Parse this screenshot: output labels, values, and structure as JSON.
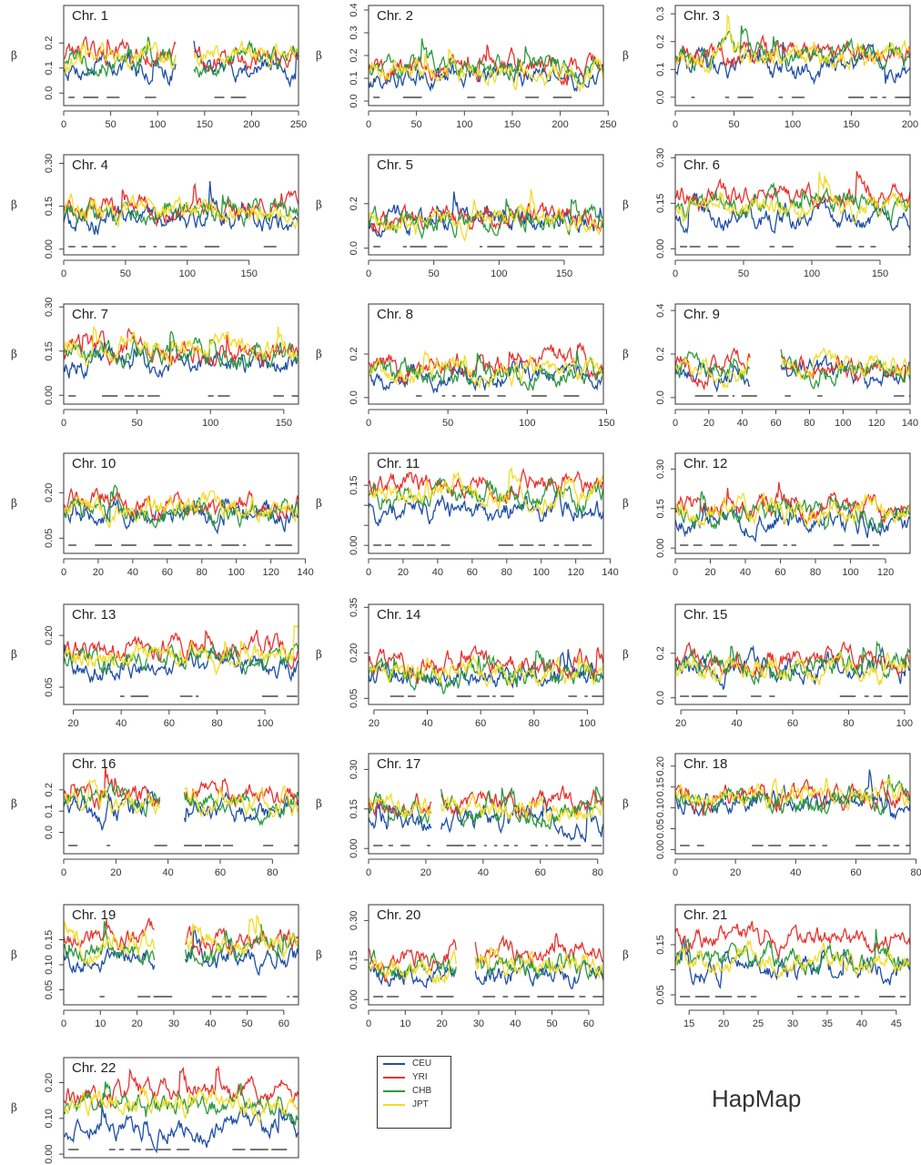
{
  "figure_label": "HapMap",
  "legend": {
    "items": [
      {
        "name": "CEU",
        "color": "#1f4ea3"
      },
      {
        "name": "YRI",
        "color": "#e8322e"
      },
      {
        "name": "CHB",
        "color": "#2e9a3e"
      },
      {
        "name": "JPT",
        "color": "#f2dc28"
      }
    ]
  },
  "chart_data": [
    {
      "type": "line",
      "title": "Chr. 1",
      "ylabel": "β",
      "xlim": [
        0,
        250
      ],
      "ylim": [
        -0.05,
        0.35
      ],
      "xticks": [
        0,
        50,
        100,
        150,
        200,
        250
      ],
      "yticks": [
        0.0,
        0.1,
        0.2
      ],
      "ytick_labels": [
        "0.0",
        "0.1",
        "0.2"
      ],
      "gaps": [
        [
          120,
          138
        ]
      ],
      "series": [
        {
          "name": "CEU",
          "mean": 0.1
        },
        {
          "name": "YRI",
          "mean": 0.15
        },
        {
          "name": "CHB",
          "mean": 0.14
        },
        {
          "name": "JPT",
          "mean": 0.14
        }
      ]
    },
    {
      "type": "line",
      "title": "Chr. 2",
      "ylabel": "β",
      "xlim": [
        0,
        245
      ],
      "ylim": [
        -0.02,
        0.42
      ],
      "xticks": [
        0,
        50,
        100,
        150,
        200,
        250
      ],
      "yticks": [
        0.0,
        0.1,
        0.2,
        0.3,
        0.4
      ],
      "ytick_labels": [
        "0.0",
        "0.1",
        "0.2",
        "0.3",
        "0.4"
      ],
      "gaps": [],
      "series": [
        {
          "name": "CEU",
          "mean": 0.1
        },
        {
          "name": "YRI",
          "mean": 0.14
        },
        {
          "name": "CHB",
          "mean": 0.14
        },
        {
          "name": "JPT",
          "mean": 0.13
        }
      ]
    },
    {
      "type": "line",
      "title": "Chr. 3",
      "ylabel": "β",
      "xlim": [
        0,
        200
      ],
      "ylim": [
        -0.03,
        0.33
      ],
      "xticks": [
        0,
        50,
        100,
        150,
        200
      ],
      "yticks": [
        0.0,
        0.1,
        0.2,
        0.3
      ],
      "ytick_labels": [
        "0.0",
        "0.1",
        "0.2",
        "0.3"
      ],
      "gaps": [],
      "series": [
        {
          "name": "CEU",
          "mean": 0.1
        },
        {
          "name": "YRI",
          "mean": 0.16
        },
        {
          "name": "CHB",
          "mean": 0.15
        },
        {
          "name": "JPT",
          "mean": 0.15
        }
      ]
    },
    {
      "type": "line",
      "title": "Chr. 4",
      "ylabel": "β",
      "xlim": [
        0,
        190
      ],
      "ylim": [
        -0.02,
        0.33
      ],
      "xticks": [
        0,
        50,
        100,
        150
      ],
      "yticks": [
        0.0,
        0.15,
        0.3
      ],
      "ytick_labels": [
        "0.00",
        "0.15",
        "0.30"
      ],
      "gaps": [],
      "series": [
        {
          "name": "CEU",
          "mean": 0.1
        },
        {
          "name": "YRI",
          "mean": 0.14
        },
        {
          "name": "CHB",
          "mean": 0.13
        },
        {
          "name": "JPT",
          "mean": 0.13
        }
      ]
    },
    {
      "type": "line",
      "title": "Chr. 5",
      "ylabel": "β",
      "xlim": [
        0,
        180
      ],
      "ylim": [
        -0.03,
        0.42
      ],
      "xticks": [
        0,
        50,
        100,
        150
      ],
      "yticks": [
        0.0,
        0.2
      ],
      "ytick_labels": [
        "0.0",
        "0.2"
      ],
      "gaps": [],
      "series": [
        {
          "name": "CEU",
          "mean": 0.11
        },
        {
          "name": "YRI",
          "mean": 0.14
        },
        {
          "name": "CHB",
          "mean": 0.13
        },
        {
          "name": "JPT",
          "mean": 0.13
        }
      ]
    },
    {
      "type": "line",
      "title": "Chr. 6",
      "ylabel": "β",
      "xlim": [
        0,
        172
      ],
      "ylim": [
        -0.02,
        0.31
      ],
      "xticks": [
        0,
        50,
        100,
        150
      ],
      "yticks": [
        0.0,
        0.15,
        0.3
      ],
      "ytick_labels": [
        "0.00",
        "0.15",
        "0.30"
      ],
      "gaps": [],
      "series": [
        {
          "name": "CEU",
          "mean": 0.1
        },
        {
          "name": "YRI",
          "mean": 0.17
        },
        {
          "name": "CHB",
          "mean": 0.14
        },
        {
          "name": "JPT",
          "mean": 0.14
        }
      ]
    },
    {
      "type": "line",
      "title": "Chr. 7",
      "ylabel": "β",
      "xlim": [
        0,
        160
      ],
      "ylim": [
        -0.03,
        0.31
      ],
      "xticks": [
        0,
        50,
        100,
        150
      ],
      "yticks": [
        0.0,
        0.15,
        0.3
      ],
      "ytick_labels": [
        "0.00",
        "0.15",
        "0.30"
      ],
      "gaps": [],
      "series": [
        {
          "name": "CEU",
          "mean": 0.1
        },
        {
          "name": "YRI",
          "mean": 0.15
        },
        {
          "name": "CHB",
          "mean": 0.14
        },
        {
          "name": "JPT",
          "mean": 0.15
        }
      ]
    },
    {
      "type": "line",
      "title": "Chr. 8",
      "ylabel": "β",
      "xlim": [
        0,
        148
      ],
      "ylim": [
        -0.03,
        0.43
      ],
      "xticks": [
        0,
        50,
        100,
        150
      ],
      "yticks": [
        0.0,
        0.2
      ],
      "ytick_labels": [
        "0.0",
        "0.2"
      ],
      "gaps": [],
      "series": [
        {
          "name": "CEU",
          "mean": 0.1
        },
        {
          "name": "YRI",
          "mean": 0.16
        },
        {
          "name": "CHB",
          "mean": 0.12
        },
        {
          "name": "JPT",
          "mean": 0.12
        }
      ]
    },
    {
      "type": "line",
      "title": "Chr. 9",
      "ylabel": "β",
      "xlim": [
        0,
        140
      ],
      "ylim": [
        -0.03,
        0.43
      ],
      "xticks": [
        0,
        20,
        40,
        60,
        80,
        100,
        120,
        140
      ],
      "yticks": [
        0.0,
        0.2,
        0.4
      ],
      "ytick_labels": [
        "0.0",
        "0.2",
        "0.4"
      ],
      "gaps": [
        [
          45,
          63
        ]
      ],
      "series": [
        {
          "name": "CEU",
          "mean": 0.1
        },
        {
          "name": "YRI",
          "mean": 0.14
        },
        {
          "name": "CHB",
          "mean": 0.13
        },
        {
          "name": "JPT",
          "mean": 0.13
        }
      ]
    },
    {
      "type": "line",
      "title": "Chr. 10",
      "ylabel": "β",
      "xlim": [
        0,
        136
      ],
      "ylim": [
        0.0,
        0.33
      ],
      "xticks": [
        0,
        20,
        40,
        60,
        80,
        100,
        120,
        140
      ],
      "yticks": [
        0.05,
        0.2
      ],
      "ytick_labels": [
        "0.05",
        "0.20"
      ],
      "gaps": [],
      "series": [
        {
          "name": "CEU",
          "mean": 0.13
        },
        {
          "name": "YRI",
          "mean": 0.16
        },
        {
          "name": "CHB",
          "mean": 0.14
        },
        {
          "name": "JPT",
          "mean": 0.15
        }
      ]
    },
    {
      "type": "line",
      "title": "Chr. 11",
      "ylabel": "β",
      "xlim": [
        0,
        136
      ],
      "ylim": [
        -0.02,
        0.23
      ],
      "xticks": [
        0,
        20,
        40,
        60,
        80,
        100,
        120,
        140
      ],
      "yticks": [
        0.0,
        0.05,
        0.1,
        0.15
      ],
      "ytick_labels": [
        "0.00",
        "",
        "",
        "0.15"
      ],
      "gaps": [],
      "series": [
        {
          "name": "CEU",
          "mean": 0.09
        },
        {
          "name": "YRI",
          "mean": 0.15
        },
        {
          "name": "CHB",
          "mean": 0.12
        },
        {
          "name": "JPT",
          "mean": 0.13
        }
      ]
    },
    {
      "type": "line",
      "title": "Chr. 12",
      "ylabel": "β",
      "xlim": [
        0,
        134
      ],
      "ylim": [
        -0.02,
        0.36
      ],
      "xticks": [
        0,
        20,
        40,
        60,
        80,
        100,
        120
      ],
      "yticks": [
        0.0,
        0.15,
        0.3
      ],
      "ytick_labels": [
        "0.00",
        "0.15",
        "0.30"
      ],
      "gaps": [],
      "series": [
        {
          "name": "CEU",
          "mean": 0.1
        },
        {
          "name": "YRI",
          "mean": 0.15
        },
        {
          "name": "CHB",
          "mean": 0.13
        },
        {
          "name": "JPT",
          "mean": 0.14
        }
      ]
    },
    {
      "type": "line",
      "title": "Chr. 13",
      "ylabel": "β",
      "xlim": [
        16,
        114
      ],
      "ylim": [
        0.0,
        0.29
      ],
      "xticks": [
        20,
        40,
        60,
        80,
        100
      ],
      "yticks": [
        0.05,
        0.2
      ],
      "ytick_labels": [
        "0.05",
        "0.20"
      ],
      "gaps": [],
      "series": [
        {
          "name": "CEU",
          "mean": 0.11
        },
        {
          "name": "YRI",
          "mean": 0.16
        },
        {
          "name": "CHB",
          "mean": 0.13
        },
        {
          "name": "JPT",
          "mean": 0.14
        }
      ]
    },
    {
      "type": "line",
      "title": "Chr. 14",
      "ylabel": "β",
      "xlim": [
        18,
        106
      ],
      "ylim": [
        0.03,
        0.36
      ],
      "xticks": [
        20,
        40,
        60,
        80,
        100
      ],
      "yticks": [
        0.05,
        0.2,
        0.35
      ],
      "ytick_labels": [
        "0.05",
        "0.20",
        "0.35"
      ],
      "gaps": [],
      "series": [
        {
          "name": "CEU",
          "mean": 0.12
        },
        {
          "name": "YRI",
          "mean": 0.16
        },
        {
          "name": "CHB",
          "mean": 0.12
        },
        {
          "name": "JPT",
          "mean": 0.13
        }
      ]
    },
    {
      "type": "line",
      "title": "Chr. 15",
      "ylabel": "β",
      "xlim": [
        18,
        102
      ],
      "ylim": [
        -0.03,
        0.42
      ],
      "xticks": [
        20,
        40,
        60,
        80,
        100
      ],
      "yticks": [
        0.0,
        0.2
      ],
      "ytick_labels": [
        "0.0",
        "0.2"
      ],
      "gaps": [],
      "series": [
        {
          "name": "CEU",
          "mean": 0.14
        },
        {
          "name": "YRI",
          "mean": 0.16
        },
        {
          "name": "CHB",
          "mean": 0.14
        },
        {
          "name": "JPT",
          "mean": 0.13
        }
      ]
    },
    {
      "type": "line",
      "title": "Chr. 16",
      "ylabel": "β",
      "xlim": [
        0,
        90
      ],
      "ylim": [
        -0.1,
        0.37
      ],
      "xticks": [
        0,
        20,
        40,
        60,
        80
      ],
      "yticks": [
        0.0,
        0.1,
        0.2
      ],
      "ytick_labels": [
        "0.0",
        "0.1",
        "0.2"
      ],
      "gaps": [
        [
          37,
          46
        ]
      ],
      "series": [
        {
          "name": "CEU",
          "mean": 0.1
        },
        {
          "name": "YRI",
          "mean": 0.16
        },
        {
          "name": "CHB",
          "mean": 0.14
        },
        {
          "name": "JPT",
          "mean": 0.14
        }
      ]
    },
    {
      "type": "line",
      "title": "Chr. 17",
      "ylabel": "β",
      "xlim": [
        0,
        82
      ],
      "ylim": [
        -0.02,
        0.36
      ],
      "xticks": [
        0,
        20,
        40,
        60,
        80
      ],
      "yticks": [
        0.0,
        0.15,
        0.3
      ],
      "ytick_labels": [
        "0.00",
        "0.15",
        "0.30"
      ],
      "gaps": [
        [
          22,
          25
        ]
      ],
      "series": [
        {
          "name": "CEU",
          "mean": 0.1
        },
        {
          "name": "YRI",
          "mean": 0.17
        },
        {
          "name": "CHB",
          "mean": 0.14
        },
        {
          "name": "JPT",
          "mean": 0.15
        }
      ]
    },
    {
      "type": "line",
      "title": "Chr. 18",
      "ylabel": "β",
      "xlim": [
        0,
        78
      ],
      "ylim": [
        -0.01,
        0.23
      ],
      "xticks": [
        0,
        20,
        40,
        60,
        80
      ],
      "yticks": [
        0.0,
        0.05,
        0.1,
        0.15,
        0.2
      ],
      "ytick_labels": [
        "0.00",
        "0.05",
        "0.10",
        "0.15",
        "0.20"
      ],
      "gaps": [],
      "series": [
        {
          "name": "CEU",
          "mean": 0.11
        },
        {
          "name": "YRI",
          "mean": 0.13
        },
        {
          "name": "CHB",
          "mean": 0.12
        },
        {
          "name": "JPT",
          "mean": 0.13
        }
      ]
    },
    {
      "type": "line",
      "title": "Chr. 19",
      "ylabel": "β",
      "xlim": [
        0,
        64
      ],
      "ylim": [
        0.02,
        0.22
      ],
      "xticks": [
        0,
        10,
        20,
        30,
        40,
        50,
        60
      ],
      "yticks": [
        0.05,
        0.1,
        0.15
      ],
      "ytick_labels": [
        "0.05",
        "0.10",
        "0.15"
      ],
      "gaps": [
        [
          25,
          33
        ]
      ],
      "series": [
        {
          "name": "CEU",
          "mean": 0.11
        },
        {
          "name": "YRI",
          "mean": 0.15
        },
        {
          "name": "CHB",
          "mean": 0.12
        },
        {
          "name": "JPT",
          "mean": 0.14
        }
      ]
    },
    {
      "type": "line",
      "title": "Chr. 20",
      "ylabel": "β",
      "xlim": [
        0,
        64
      ],
      "ylim": [
        -0.02,
        0.36
      ],
      "xticks": [
        0,
        10,
        20,
        30,
        40,
        50,
        60
      ],
      "yticks": [
        0.0,
        0.15,
        0.3
      ],
      "ytick_labels": [
        "0.00",
        "0.15",
        "0.30"
      ],
      "gaps": [
        [
          24,
          29
        ]
      ],
      "series": [
        {
          "name": "CEU",
          "mean": 0.1
        },
        {
          "name": "YRI",
          "mean": 0.17
        },
        {
          "name": "CHB",
          "mean": 0.12
        },
        {
          "name": "JPT",
          "mean": 0.12
        }
      ]
    },
    {
      "type": "line",
      "title": "Chr. 21",
      "ylabel": "β",
      "xlim": [
        13,
        47
      ],
      "ylim": [
        0.03,
        0.23
      ],
      "xticks": [
        15,
        20,
        25,
        30,
        35,
        40,
        45
      ],
      "yticks": [
        0.05,
        0.1,
        0.15
      ],
      "ytick_labels": [
        "0.05",
        "",
        "0.15"
      ],
      "gaps": [],
      "series": [
        {
          "name": "CEU",
          "mean": 0.1
        },
        {
          "name": "YRI",
          "mean": 0.16
        },
        {
          "name": "CHB",
          "mean": 0.12
        },
        {
          "name": "JPT",
          "mean": 0.12
        }
      ]
    },
    {
      "type": "line",
      "title": "Chr. 22",
      "ylabel": "β",
      "xlim": [
        14,
        51
      ],
      "ylim": [
        -0.01,
        0.27
      ],
      "xticks": [],
      "yticks": [
        0.0,
        0.1,
        0.2
      ],
      "ytick_labels": [
        "0.00",
        "0.10",
        "0.20"
      ],
      "gaps": [],
      "series": [
        {
          "name": "CEU",
          "mean": 0.07
        },
        {
          "name": "YRI",
          "mean": 0.17
        },
        {
          "name": "CHB",
          "mean": 0.14
        },
        {
          "name": "JPT",
          "mean": 0.15
        }
      ]
    }
  ]
}
